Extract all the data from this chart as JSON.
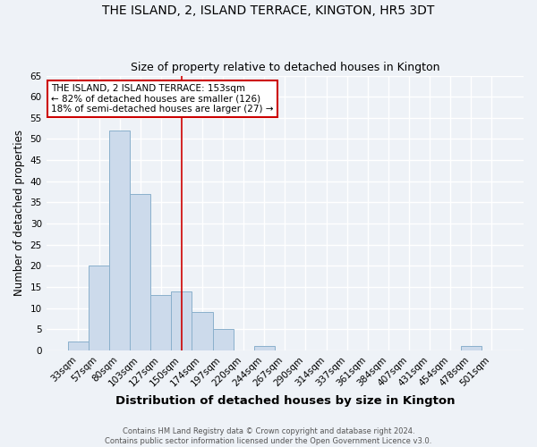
{
  "title": "THE ISLAND, 2, ISLAND TERRACE, KINGTON, HR5 3DT",
  "subtitle": "Size of property relative to detached houses in Kington",
  "xlabel": "Distribution of detached houses by size in Kington",
  "ylabel": "Number of detached properties",
  "footer1": "Contains HM Land Registry data © Crown copyright and database right 2024.",
  "footer2": "Contains public sector information licensed under the Open Government Licence v3.0.",
  "bins": [
    "33sqm",
    "57sqm",
    "80sqm",
    "103sqm",
    "127sqm",
    "150sqm",
    "174sqm",
    "197sqm",
    "220sqm",
    "244sqm",
    "267sqm",
    "290sqm",
    "314sqm",
    "337sqm",
    "361sqm",
    "384sqm",
    "407sqm",
    "431sqm",
    "454sqm",
    "478sqm",
    "501sqm"
  ],
  "values": [
    2,
    20,
    52,
    37,
    13,
    14,
    9,
    5,
    0,
    1,
    0,
    0,
    0,
    0,
    0,
    0,
    0,
    0,
    0,
    1,
    0
  ],
  "bar_color": "#ccdaeb",
  "bar_edge_color": "#8ab0cc",
  "vline_x": 5,
  "vline_color": "#cc0000",
  "annotation_text": "THE ISLAND, 2 ISLAND TERRACE: 153sqm\n← 82% of detached houses are smaller (126)\n18% of semi-detached houses are larger (27) →",
  "annotation_box_color": "#ffffff",
  "annotation_box_edge": "#cc0000",
  "ylim": [
    0,
    65
  ],
  "yticks": [
    0,
    5,
    10,
    15,
    20,
    25,
    30,
    35,
    40,
    45,
    50,
    55,
    60,
    65
  ],
  "background_color": "#eef2f7",
  "plot_background": "#eef2f7",
  "grid_color": "#ffffff",
  "title_fontsize": 10,
  "subtitle_fontsize": 9,
  "xlabel_fontsize": 9.5,
  "ylabel_fontsize": 8.5,
  "tick_fontsize": 7.5
}
